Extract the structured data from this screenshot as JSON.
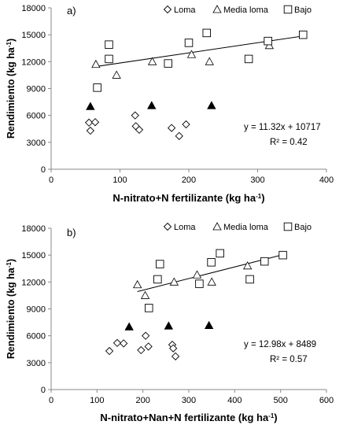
{
  "chart_data": [
    {
      "type": "scatter",
      "panel_label": "a)",
      "xlabel": "N-nitrato+N fertilizante (kg ha-1)",
      "xlabel_main": "N-nitrato+N fertilizante (kg ha",
      "xlabel_sup": "-1",
      "xlabel_tail": ")",
      "ylabel": "Rendimiento (kg ha-1)",
      "ylabel_main": "Rendimiento (kg ha",
      "ylabel_sup": "-1",
      "ylabel_tail": ")",
      "xlim": [
        0,
        400
      ],
      "ylim": [
        0,
        18000
      ],
      "xticks": [
        0,
        100,
        200,
        300,
        400
      ],
      "yticks": [
        0,
        3000,
        6000,
        9000,
        12000,
        15000,
        18000
      ],
      "xtick_labels": [
        "0",
        "100",
        "200",
        "300",
        "400"
      ],
      "ytick_labels": [
        "0",
        "3000",
        "6000",
        "9000",
        "12000",
        "15000",
        "18000"
      ],
      "legend": [
        {
          "marker": "diamond",
          "label": "Loma"
        },
        {
          "marker": "triangle-open",
          "label": "Media loma"
        },
        {
          "marker": "square",
          "label": "Bajo"
        }
      ],
      "series": [
        {
          "name": "Loma",
          "marker": "diamond",
          "points": [
            [
              55,
              5200
            ],
            [
              57,
              4300
            ],
            [
              64,
              5250
            ],
            [
              122,
              6000
            ],
            [
              123,
              4800
            ],
            [
              128,
              4400
            ],
            [
              175,
              4600
            ],
            [
              186,
              3700
            ],
            [
              196,
              5000
            ]
          ]
        },
        {
          "marker": "triangle-filled",
          "points": [
            [
              57,
              7000
            ],
            [
              146,
              7100
            ],
            [
              233,
              7100
            ]
          ]
        },
        {
          "name": "Media loma",
          "marker": "triangle-open",
          "points": [
            [
              65,
              11700
            ],
            [
              95,
              10500
            ],
            [
              147,
              12000
            ],
            [
              204,
              12800
            ],
            [
              230,
              12000
            ],
            [
              317,
              13800
            ]
          ]
        },
        {
          "name": "Bajo",
          "marker": "square",
          "points": [
            [
              67,
              9100
            ],
            [
              84,
              13900
            ],
            [
              84,
              12300
            ],
            [
              170,
              11800
            ],
            [
              200,
              14100
            ],
            [
              226,
              15200
            ],
            [
              287,
              12300
            ],
            [
              315,
              14300
            ],
            [
              366,
              15000
            ]
          ]
        }
      ],
      "trendline": {
        "slope": 11.32,
        "intercept": 10717,
        "x_range": [
          65,
          366
        ]
      },
      "equation": "y = 11.32x + 10717",
      "r2": "R² = 0.42"
    },
    {
      "type": "scatter",
      "panel_label": "b)",
      "xlabel": "N-nitrato+Nan+N fertilizante (kg ha-1)",
      "xlabel_main": "N-nitrato+Nan+N fertilizante (kg ha",
      "xlabel_sup": "-1",
      "xlabel_tail": ")",
      "ylabel": "Rendimiento (kg ha-1)",
      "ylabel_main": "Rendimiento (kg ha",
      "ylabel_sup": "-1",
      "ylabel_tail": ")",
      "xlim": [
        0,
        600
      ],
      "ylim": [
        0,
        18000
      ],
      "xticks": [
        0,
        100,
        200,
        300,
        400,
        500,
        600
      ],
      "yticks": [
        0,
        3000,
        6000,
        9000,
        12000,
        15000,
        18000
      ],
      "xtick_labels": [
        "0",
        "100",
        "200",
        "300",
        "400",
        "500",
        "600"
      ],
      "ytick_labels": [
        "0",
        "3000",
        "6000",
        "9000",
        "12000",
        "15000",
        "18000"
      ],
      "legend": [
        {
          "marker": "diamond",
          "label": "Loma"
        },
        {
          "marker": "triangle-open",
          "label": "Media loma"
        },
        {
          "marker": "square",
          "label": "Bajo"
        }
      ],
      "series": [
        {
          "name": "Loma",
          "marker": "diamond",
          "points": [
            [
              127,
              4300
            ],
            [
              144,
              5200
            ],
            [
              158,
              5150
            ],
            [
              196,
              4400
            ],
            [
              206,
              6000
            ],
            [
              212,
              4800
            ],
            [
              264,
              5000
            ],
            [
              266,
              4600
            ],
            [
              271,
              3700
            ]
          ]
        },
        {
          "marker": "triangle-filled",
          "points": [
            [
              170,
              7000
            ],
            [
              256,
              7100
            ],
            [
              344,
              7150
            ]
          ]
        },
        {
          "marker": "triangle-open",
          "name": "Media loma",
          "points": [
            [
              188,
              11700
            ],
            [
              205,
              10500
            ],
            [
              268,
              12000
            ],
            [
              318,
              12800
            ],
            [
              350,
              12000
            ],
            [
              428,
              13800
            ]
          ]
        },
        {
          "name": "Bajo",
          "marker": "square",
          "points": [
            [
              213,
              9100
            ],
            [
              232,
              12300
            ],
            [
              237,
              14000
            ],
            [
              323,
              11800
            ],
            [
              349,
              14200
            ],
            [
              368,
              15200
            ],
            [
              433,
              12300
            ],
            [
              465,
              14300
            ],
            [
              505,
              15000
            ]
          ]
        }
      ],
      "trendline": {
        "slope": 12.98,
        "intercept": 8489,
        "x_range": [
          188,
          505
        ]
      },
      "equation": "y = 12.98x + 8489",
      "r2": "R² = 0.57"
    }
  ]
}
